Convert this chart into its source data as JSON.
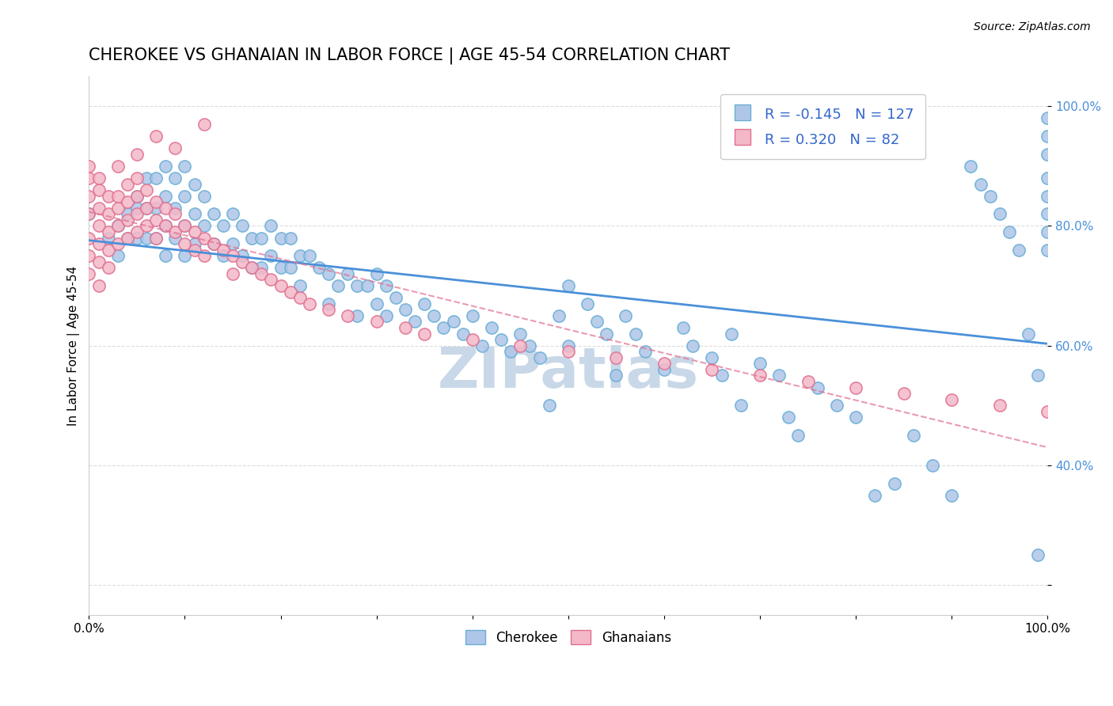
{
  "title": "CHEROKEE VS GHANAIAN IN LABOR FORCE | AGE 45-54 CORRELATION CHART",
  "source_text": "Source: ZipAtlas.com",
  "xlabel": "",
  "ylabel": "In Labor Force | Age 45-54",
  "xlim": [
    0,
    1
  ],
  "ylim": [
    0.15,
    1.05
  ],
  "xticks": [
    0.0,
    0.1,
    0.2,
    0.3,
    0.4,
    0.5,
    0.6,
    0.7,
    0.8,
    0.9,
    1.0
  ],
  "xticklabels": [
    "0.0%",
    "",
    "",
    "",
    "",
    "",
    "",
    "",
    "",
    "",
    "100.0%"
  ],
  "ytick_positions": [
    0.2,
    0.4,
    0.6,
    0.8,
    1.0
  ],
  "ytick_labels": [
    "",
    "40.0%",
    "60.0%",
    "80.0%",
    "100.0%"
  ],
  "legend_r_cherokee": "-0.145",
  "legend_n_cherokee": "127",
  "legend_r_ghanaian": "0.320",
  "legend_n_ghanaian": "82",
  "cherokee_color": "#aec6e8",
  "cherokee_edge": "#6aaed6",
  "ghanaian_color": "#f4b8c8",
  "ghanaian_edge": "#e07090",
  "trendline_cherokee_color": "#4a90d9",
  "trendline_ghanaian_color": "#e07090",
  "watermark_color": "#c8d8e8",
  "watermark_text": "ZIPatlas",
  "grid_color": "#dddddd",
  "cherokee_x": [
    0.0,
    0.02,
    0.03,
    0.03,
    0.04,
    0.04,
    0.05,
    0.05,
    0.05,
    0.06,
    0.06,
    0.06,
    0.07,
    0.07,
    0.07,
    0.08,
    0.08,
    0.08,
    0.08,
    0.09,
    0.09,
    0.09,
    0.1,
    0.1,
    0.1,
    0.1,
    0.11,
    0.11,
    0.11,
    0.12,
    0.12,
    0.13,
    0.13,
    0.14,
    0.14,
    0.15,
    0.15,
    0.16,
    0.16,
    0.17,
    0.17,
    0.18,
    0.18,
    0.19,
    0.19,
    0.2,
    0.2,
    0.21,
    0.21,
    0.22,
    0.22,
    0.23,
    0.24,
    0.25,
    0.25,
    0.26,
    0.27,
    0.28,
    0.28,
    0.29,
    0.3,
    0.3,
    0.31,
    0.31,
    0.32,
    0.33,
    0.34,
    0.35,
    0.36,
    0.37,
    0.38,
    0.39,
    0.4,
    0.41,
    0.42,
    0.43,
    0.44,
    0.45,
    0.46,
    0.47,
    0.48,
    0.49,
    0.5,
    0.5,
    0.52,
    0.53,
    0.54,
    0.55,
    0.56,
    0.57,
    0.58,
    0.6,
    0.62,
    0.63,
    0.65,
    0.66,
    0.67,
    0.68,
    0.7,
    0.72,
    0.73,
    0.74,
    0.76,
    0.78,
    0.8,
    0.82,
    0.84,
    0.86,
    0.88,
    0.9,
    0.92,
    0.93,
    0.94,
    0.95,
    0.96,
    0.97,
    0.98,
    0.99,
    0.99,
    1.0,
    1.0,
    1.0,
    1.0,
    1.0,
    1.0,
    1.0,
    1.0
  ],
  "cherokee_y": [
    0.82,
    0.78,
    0.8,
    0.75,
    0.82,
    0.78,
    0.85,
    0.83,
    0.78,
    0.88,
    0.83,
    0.78,
    0.88,
    0.83,
    0.78,
    0.9,
    0.85,
    0.8,
    0.75,
    0.88,
    0.83,
    0.78,
    0.9,
    0.85,
    0.8,
    0.75,
    0.87,
    0.82,
    0.77,
    0.85,
    0.8,
    0.82,
    0.77,
    0.8,
    0.75,
    0.82,
    0.77,
    0.8,
    0.75,
    0.78,
    0.73,
    0.78,
    0.73,
    0.8,
    0.75,
    0.78,
    0.73,
    0.78,
    0.73,
    0.75,
    0.7,
    0.75,
    0.73,
    0.72,
    0.67,
    0.7,
    0.72,
    0.7,
    0.65,
    0.7,
    0.72,
    0.67,
    0.7,
    0.65,
    0.68,
    0.66,
    0.64,
    0.67,
    0.65,
    0.63,
    0.64,
    0.62,
    0.65,
    0.6,
    0.63,
    0.61,
    0.59,
    0.62,
    0.6,
    0.58,
    0.5,
    0.65,
    0.7,
    0.6,
    0.67,
    0.64,
    0.62,
    0.55,
    0.65,
    0.62,
    0.59,
    0.56,
    0.63,
    0.6,
    0.58,
    0.55,
    0.62,
    0.5,
    0.57,
    0.55,
    0.48,
    0.45,
    0.53,
    0.5,
    0.48,
    0.35,
    0.37,
    0.45,
    0.4,
    0.35,
    0.9,
    0.87,
    0.85,
    0.82,
    0.79,
    0.76,
    0.62,
    0.55,
    0.25,
    0.98,
    0.95,
    0.92,
    0.88,
    0.85,
    0.82,
    0.79,
    0.76
  ],
  "ghanaian_x": [
    0.0,
    0.0,
    0.0,
    0.0,
    0.0,
    0.0,
    0.0,
    0.01,
    0.01,
    0.01,
    0.01,
    0.01,
    0.01,
    0.01,
    0.02,
    0.02,
    0.02,
    0.02,
    0.02,
    0.03,
    0.03,
    0.03,
    0.03,
    0.04,
    0.04,
    0.04,
    0.04,
    0.05,
    0.05,
    0.05,
    0.05,
    0.06,
    0.06,
    0.06,
    0.07,
    0.07,
    0.07,
    0.08,
    0.08,
    0.09,
    0.09,
    0.1,
    0.1,
    0.11,
    0.11,
    0.12,
    0.12,
    0.13,
    0.14,
    0.15,
    0.15,
    0.16,
    0.17,
    0.18,
    0.19,
    0.2,
    0.21,
    0.22,
    0.23,
    0.25,
    0.27,
    0.3,
    0.33,
    0.35,
    0.4,
    0.45,
    0.5,
    0.55,
    0.6,
    0.65,
    0.7,
    0.75,
    0.8,
    0.85,
    0.9,
    0.95,
    1.0,
    0.03,
    0.05,
    0.07,
    0.09,
    0.12
  ],
  "ghanaian_y": [
    0.82,
    0.85,
    0.88,
    0.9,
    0.78,
    0.75,
    0.72,
    0.83,
    0.86,
    0.88,
    0.8,
    0.77,
    0.74,
    0.7,
    0.85,
    0.82,
    0.79,
    0.76,
    0.73,
    0.85,
    0.83,
    0.8,
    0.77,
    0.87,
    0.84,
    0.81,
    0.78,
    0.88,
    0.85,
    0.82,
    0.79,
    0.86,
    0.83,
    0.8,
    0.84,
    0.81,
    0.78,
    0.83,
    0.8,
    0.82,
    0.79,
    0.8,
    0.77,
    0.79,
    0.76,
    0.78,
    0.75,
    0.77,
    0.76,
    0.75,
    0.72,
    0.74,
    0.73,
    0.72,
    0.71,
    0.7,
    0.69,
    0.68,
    0.67,
    0.66,
    0.65,
    0.64,
    0.63,
    0.62,
    0.61,
    0.6,
    0.59,
    0.58,
    0.57,
    0.56,
    0.55,
    0.54,
    0.53,
    0.52,
    0.51,
    0.5,
    0.49,
    0.9,
    0.92,
    0.95,
    0.93,
    0.97
  ],
  "title_fontsize": 15,
  "axis_label_fontsize": 11,
  "tick_fontsize": 11,
  "legend_fontsize": 13,
  "source_fontsize": 10
}
